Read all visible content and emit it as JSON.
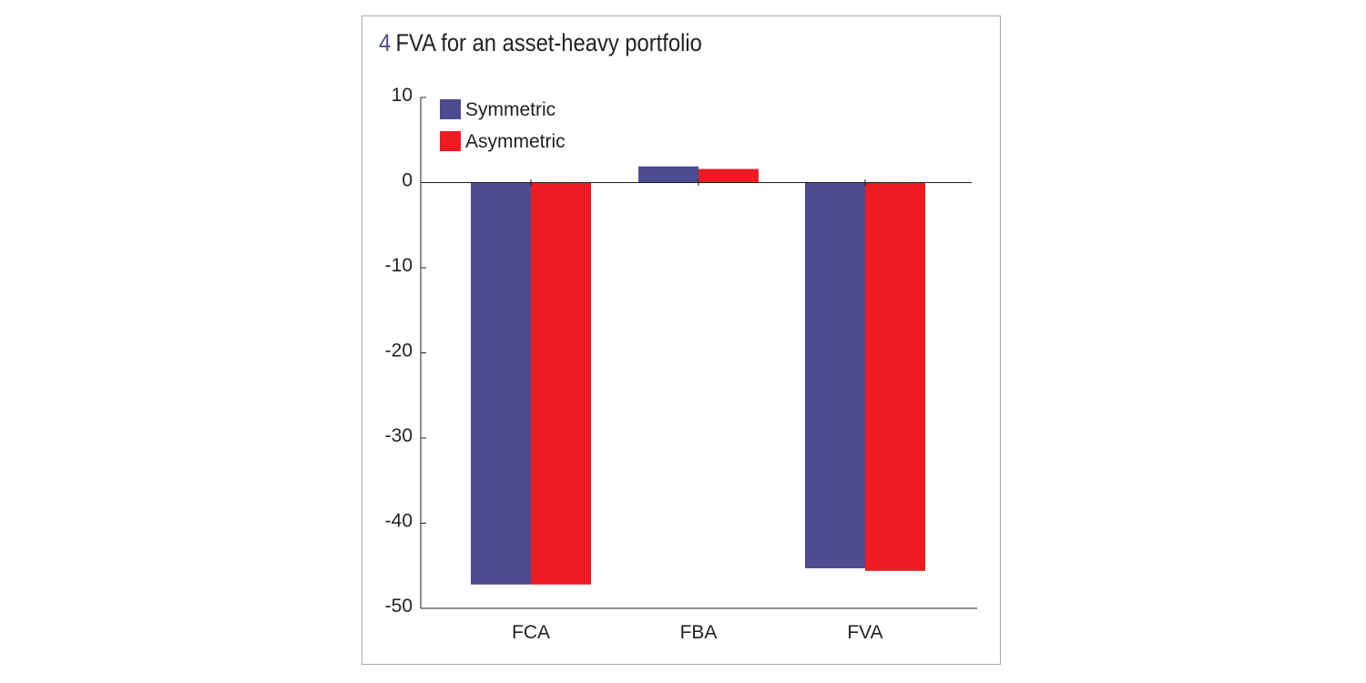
{
  "figure": {
    "number": "4",
    "title": "FVA for an asset-heavy portfolio"
  },
  "chart_data": {
    "type": "bar",
    "title": "FVA for an asset-heavy portfolio",
    "xlabel": "",
    "ylabel": "",
    "categories": [
      "FCA",
      "FBA",
      "FVA"
    ],
    "series": [
      {
        "name": "Symmetric",
        "color": "#4b4c91",
        "values": [
          -47.2,
          1.9,
          -45.3
        ]
      },
      {
        "name": "Asymmetric",
        "color": "#ed1c24",
        "values": [
          -47.2,
          1.6,
          -45.6
        ]
      }
    ],
    "ylim": [
      -50,
      10
    ],
    "yticks": [
      "10",
      "0",
      "-10",
      "-20",
      "-30",
      "-40",
      "-50"
    ],
    "legend_position": "top-left",
    "grid": false
  }
}
